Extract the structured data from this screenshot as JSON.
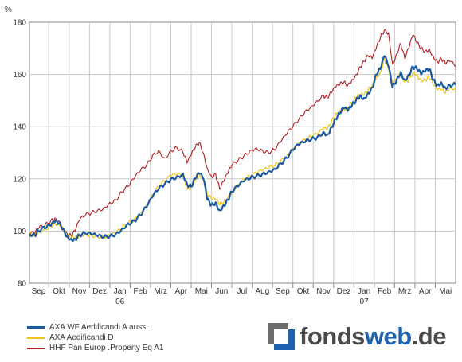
{
  "chart_data": {
    "type": "line",
    "ylabel": "%",
    "ylim": [
      80,
      180
    ],
    "yticks": [
      80,
      100,
      120,
      140,
      160,
      180
    ],
    "grid": true,
    "x_months": [
      "Sep",
      "Okt",
      "Nov",
      "Dez",
      "Jan",
      "Feb",
      "Mrz",
      "Apr",
      "Mai",
      "Jun",
      "Jul",
      "Aug",
      "Sep",
      "Okt",
      "Nov",
      "Dez",
      "Jan",
      "Feb",
      "Mrz",
      "Apr",
      "Mai"
    ],
    "x_years": [
      {
        "label": "06",
        "month_index": 4
      },
      {
        "label": "07",
        "month_index": 16
      }
    ],
    "x_range_months": [
      -0.45,
      20.5
    ],
    "legend_position": "bottom-left",
    "series": [
      {
        "name": "AXA WF Aedificandi A auss.",
        "color": "#1a5aa0",
        "points": [
          [
            -0.45,
            99
          ],
          [
            -0.2,
            98.5
          ],
          [
            0,
            100
          ],
          [
            0.3,
            101
          ],
          [
            0.6,
            102
          ],
          [
            0.8,
            103.5
          ],
          [
            1.0,
            103
          ],
          [
            1.2,
            101
          ],
          [
            1.4,
            98
          ],
          [
            1.6,
            97
          ],
          [
            1.8,
            97
          ],
          [
            2.0,
            98.5
          ],
          [
            2.3,
            99
          ],
          [
            2.6,
            98.5
          ],
          [
            2.9,
            98
          ],
          [
            3.2,
            97.5
          ],
          [
            3.5,
            98
          ],
          [
            3.8,
            99
          ],
          [
            4.1,
            101
          ],
          [
            4.4,
            103
          ],
          [
            4.7,
            104
          ],
          [
            5.0,
            106
          ],
          [
            5.3,
            109
          ],
          [
            5.6,
            113
          ],
          [
            5.9,
            116
          ],
          [
            6.2,
            118
          ],
          [
            6.5,
            120
          ],
          [
            6.8,
            121
          ],
          [
            7.1,
            122
          ],
          [
            7.3,
            118
          ],
          [
            7.5,
            117
          ],
          [
            7.7,
            120
          ],
          [
            7.9,
            122
          ],
          [
            8.1,
            120
          ],
          [
            8.3,
            112
          ],
          [
            8.5,
            110
          ],
          [
            8.7,
            111
          ],
          [
            8.9,
            108
          ],
          [
            9.1,
            110
          ],
          [
            9.3,
            112
          ],
          [
            9.5,
            115
          ],
          [
            9.8,
            117
          ],
          [
            10.1,
            119
          ],
          [
            10.4,
            120
          ],
          [
            10.7,
            121
          ],
          [
            11.0,
            122
          ],
          [
            11.3,
            123
          ],
          [
            11.6,
            124
          ],
          [
            11.9,
            126
          ],
          [
            12.2,
            128
          ],
          [
            12.5,
            131
          ],
          [
            12.8,
            133
          ],
          [
            13.1,
            134
          ],
          [
            13.4,
            135
          ],
          [
            13.7,
            136
          ],
          [
            14.0,
            138
          ],
          [
            14.2,
            137
          ],
          [
            14.4,
            140
          ],
          [
            14.6,
            143
          ],
          [
            14.8,
            145
          ],
          [
            15.0,
            147
          ],
          [
            15.2,
            146
          ],
          [
            15.4,
            148
          ],
          [
            15.6,
            150
          ],
          [
            15.8,
            152
          ],
          [
            16.0,
            151
          ],
          [
            16.2,
            153
          ],
          [
            16.4,
            155
          ],
          [
            16.6,
            160
          ],
          [
            16.8,
            162
          ],
          [
            17.0,
            167
          ],
          [
            17.2,
            163
          ],
          [
            17.4,
            155
          ],
          [
            17.6,
            158
          ],
          [
            17.8,
            161
          ],
          [
            18.0,
            158
          ],
          [
            18.2,
            160
          ],
          [
            18.4,
            163
          ],
          [
            18.6,
            162
          ],
          [
            18.8,
            160
          ],
          [
            19.0,
            161
          ],
          [
            19.2,
            162
          ],
          [
            19.4,
            158
          ],
          [
            19.6,
            156
          ],
          [
            19.8,
            157
          ],
          [
            20.0,
            155
          ],
          [
            20.2,
            156
          ],
          [
            20.5,
            156
          ]
        ]
      },
      {
        "name": "AXA Aedificandi D",
        "color": "#f0c419",
        "points": [
          [
            -0.45,
            99
          ],
          [
            -0.2,
            98.5
          ],
          [
            0,
            100
          ],
          [
            0.3,
            101
          ],
          [
            0.6,
            102
          ],
          [
            0.8,
            103
          ],
          [
            1.0,
            102.5
          ],
          [
            1.2,
            100.5
          ],
          [
            1.4,
            98
          ],
          [
            1.6,
            97.5
          ],
          [
            1.8,
            97.5
          ],
          [
            2.0,
            98.5
          ],
          [
            2.3,
            99
          ],
          [
            2.6,
            98.5
          ],
          [
            2.9,
            98
          ],
          [
            3.2,
            97.5
          ],
          [
            3.5,
            98
          ],
          [
            3.8,
            99
          ],
          [
            4.1,
            101
          ],
          [
            4.4,
            103
          ],
          [
            4.7,
            104.5
          ],
          [
            5.0,
            107
          ],
          [
            5.3,
            110
          ],
          [
            5.6,
            114
          ],
          [
            5.9,
            117
          ],
          [
            6.2,
            119
          ],
          [
            6.5,
            121
          ],
          [
            6.8,
            121.5
          ],
          [
            7.1,
            121
          ],
          [
            7.3,
            116
          ],
          [
            7.5,
            117
          ],
          [
            7.7,
            120
          ],
          [
            7.9,
            122
          ],
          [
            8.1,
            120
          ],
          [
            8.3,
            114
          ],
          [
            8.5,
            112
          ],
          [
            8.7,
            112
          ],
          [
            8.9,
            110
          ],
          [
            9.1,
            111
          ],
          [
            9.3,
            113
          ],
          [
            9.5,
            115
          ],
          [
            9.8,
            118
          ],
          [
            10.1,
            120
          ],
          [
            10.4,
            121
          ],
          [
            10.7,
            122
          ],
          [
            11.0,
            123
          ],
          [
            11.3,
            124
          ],
          [
            11.6,
            125
          ],
          [
            11.9,
            127
          ],
          [
            12.2,
            129
          ],
          [
            12.5,
            132
          ],
          [
            12.8,
            134
          ],
          [
            13.1,
            135
          ],
          [
            13.4,
            136
          ],
          [
            13.7,
            137
          ],
          [
            14.0,
            139
          ],
          [
            14.2,
            139
          ],
          [
            14.4,
            142
          ],
          [
            14.6,
            145
          ],
          [
            14.8,
            146
          ],
          [
            15.0,
            147
          ],
          [
            15.2,
            147
          ],
          [
            15.4,
            149
          ],
          [
            15.6,
            151
          ],
          [
            15.8,
            152
          ],
          [
            16.0,
            152
          ],
          [
            16.2,
            154
          ],
          [
            16.4,
            156
          ],
          [
            16.6,
            159
          ],
          [
            16.8,
            161
          ],
          [
            17.0,
            166
          ],
          [
            17.2,
            162
          ],
          [
            17.4,
            156
          ],
          [
            17.6,
            158
          ],
          [
            17.8,
            160
          ],
          [
            18.0,
            157
          ],
          [
            18.2,
            158
          ],
          [
            18.4,
            161
          ],
          [
            18.6,
            160
          ],
          [
            18.8,
            158
          ],
          [
            19.0,
            158
          ],
          [
            19.2,
            159
          ],
          [
            19.4,
            156
          ],
          [
            19.6,
            154
          ],
          [
            19.8,
            154
          ],
          [
            20.0,
            153
          ],
          [
            20.2,
            155
          ],
          [
            20.5,
            155
          ]
        ]
      },
      {
        "name": "HHF Pan Europ .Property Eq A1",
        "color": "#b01e23",
        "points": [
          [
            -0.45,
            99
          ],
          [
            -0.2,
            99
          ],
          [
            0,
            101
          ],
          [
            0.3,
            102
          ],
          [
            0.6,
            104
          ],
          [
            0.8,
            105
          ],
          [
            1.0,
            104
          ],
          [
            1.2,
            101
          ],
          [
            1.4,
            99
          ],
          [
            1.6,
            98
          ],
          [
            1.8,
            100
          ],
          [
            2.0,
            104
          ],
          [
            2.3,
            106
          ],
          [
            2.6,
            107
          ],
          [
            2.9,
            108
          ],
          [
            3.2,
            109
          ],
          [
            3.5,
            111
          ],
          [
            3.8,
            112
          ],
          [
            4.1,
            115
          ],
          [
            4.4,
            117
          ],
          [
            4.7,
            120
          ],
          [
            5.0,
            123
          ],
          [
            5.3,
            125
          ],
          [
            5.6,
            129
          ],
          [
            5.9,
            131
          ],
          [
            6.2,
            128
          ],
          [
            6.5,
            131
          ],
          [
            6.8,
            132
          ],
          [
            7.1,
            130
          ],
          [
            7.3,
            126
          ],
          [
            7.5,
            129
          ],
          [
            7.7,
            132
          ],
          [
            7.9,
            134
          ],
          [
            8.1,
            130
          ],
          [
            8.3,
            124
          ],
          [
            8.5,
            121
          ],
          [
            8.7,
            122
          ],
          [
            8.9,
            116
          ],
          [
            9.1,
            119
          ],
          [
            9.3,
            122
          ],
          [
            9.5,
            125
          ],
          [
            9.8,
            127
          ],
          [
            10.1,
            129
          ],
          [
            10.4,
            131
          ],
          [
            10.7,
            132
          ],
          [
            11.0,
            131
          ],
          [
            11.3,
            130
          ],
          [
            11.6,
            131
          ],
          [
            11.9,
            134
          ],
          [
            12.2,
            137
          ],
          [
            12.5,
            140
          ],
          [
            12.8,
            143
          ],
          [
            13.1,
            146
          ],
          [
            13.4,
            148
          ],
          [
            13.7,
            150
          ],
          [
            14.0,
            152
          ],
          [
            14.2,
            151
          ],
          [
            14.4,
            153
          ],
          [
            14.6,
            155
          ],
          [
            14.8,
            156
          ],
          [
            15.0,
            157
          ],
          [
            15.2,
            156
          ],
          [
            15.4,
            158
          ],
          [
            15.6,
            160
          ],
          [
            15.8,
            163
          ],
          [
            16.0,
            165
          ],
          [
            16.2,
            167
          ],
          [
            16.4,
            166
          ],
          [
            16.6,
            170
          ],
          [
            16.8,
            174
          ],
          [
            17.0,
            177
          ],
          [
            17.2,
            176
          ],
          [
            17.4,
            164
          ],
          [
            17.6,
            168
          ],
          [
            17.8,
            172
          ],
          [
            18.0,
            166
          ],
          [
            18.2,
            170
          ],
          [
            18.4,
            175
          ],
          [
            18.6,
            172
          ],
          [
            18.8,
            170
          ],
          [
            19.0,
            169
          ],
          [
            19.2,
            170
          ],
          [
            19.4,
            167
          ],
          [
            19.6,
            165
          ],
          [
            19.8,
            166
          ],
          [
            20.0,
            164
          ],
          [
            20.2,
            165
          ],
          [
            20.5,
            163
          ]
        ]
      }
    ]
  },
  "logo": {
    "part1": "fonds",
    "part2": "web",
    "part3": ".de"
  }
}
